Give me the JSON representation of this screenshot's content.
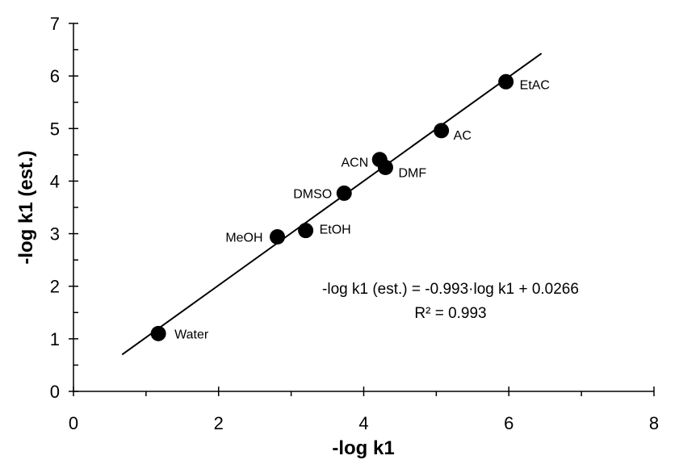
{
  "chart_data": {
    "type": "scatter",
    "xlabel": "-log k1",
    "ylabel": "-log k1 (est.)",
    "xlim": [
      0,
      8
    ],
    "ylim": [
      0,
      7
    ],
    "x_ticks": [
      "0",
      "2",
      "4",
      "6",
      "8"
    ],
    "y_ticks": [
      "0",
      "1",
      "2",
      "3",
      "4",
      "5",
      "6",
      "7"
    ],
    "grid": false,
    "points": [
      {
        "label": "Water",
        "x": 1.17,
        "y": 1.1
      },
      {
        "label": "MeOH",
        "x": 2.81,
        "y": 2.94
      },
      {
        "label": "EtOH",
        "x": 3.2,
        "y": 3.06
      },
      {
        "label": "DMSO",
        "x": 3.73,
        "y": 3.77
      },
      {
        "label": "ACN",
        "x": 4.22,
        "y": 4.41
      },
      {
        "label": "DMF",
        "x": 4.3,
        "y": 4.26
      },
      {
        "label": "AC",
        "x": 5.07,
        "y": 4.96
      },
      {
        "label": "EtAC",
        "x": 5.96,
        "y": 5.89
      }
    ],
    "fit_line": {
      "x": [
        0.67,
        6.45
      ],
      "y": [
        0.7,
        6.43
      ]
    },
    "equation": "-log k1 (est.) = -0.993·log k1 + 0.0266",
    "r_squared": "R² = 0.993"
  }
}
